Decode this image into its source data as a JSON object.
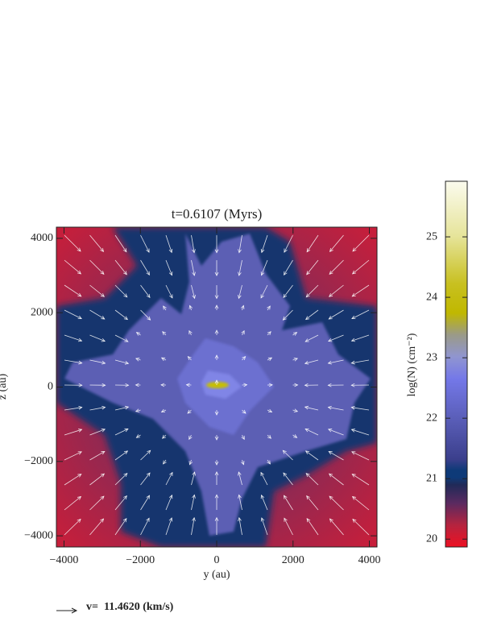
{
  "chart_data": {
    "type": "heatmap",
    "title": "t=0.6107 (Myrs)",
    "xlabel": "y (au)",
    "ylabel": "z (au)",
    "xlim": [
      -4200,
      4200
    ],
    "ylim": [
      -4300,
      4300
    ],
    "xticks": [
      {
        "value": -4000,
        "label": "−4000"
      },
      {
        "value": -2000,
        "label": "−2000"
      },
      0,
      2000,
      4000
    ],
    "yticks": [
      {
        "value": -4000,
        "label": "−4000"
      },
      {
        "value": -2000,
        "label": "−2000"
      },
      0,
      2000,
      4000
    ],
    "colorbar": {
      "label": "log(N) (cm⁻²)",
      "lim": [
        19.87,
        25.92
      ],
      "ticks": [
        20,
        21,
        22,
        23,
        24,
        25
      ]
    },
    "vector_key": "v=  11.4620 (km/s)"
  }
}
